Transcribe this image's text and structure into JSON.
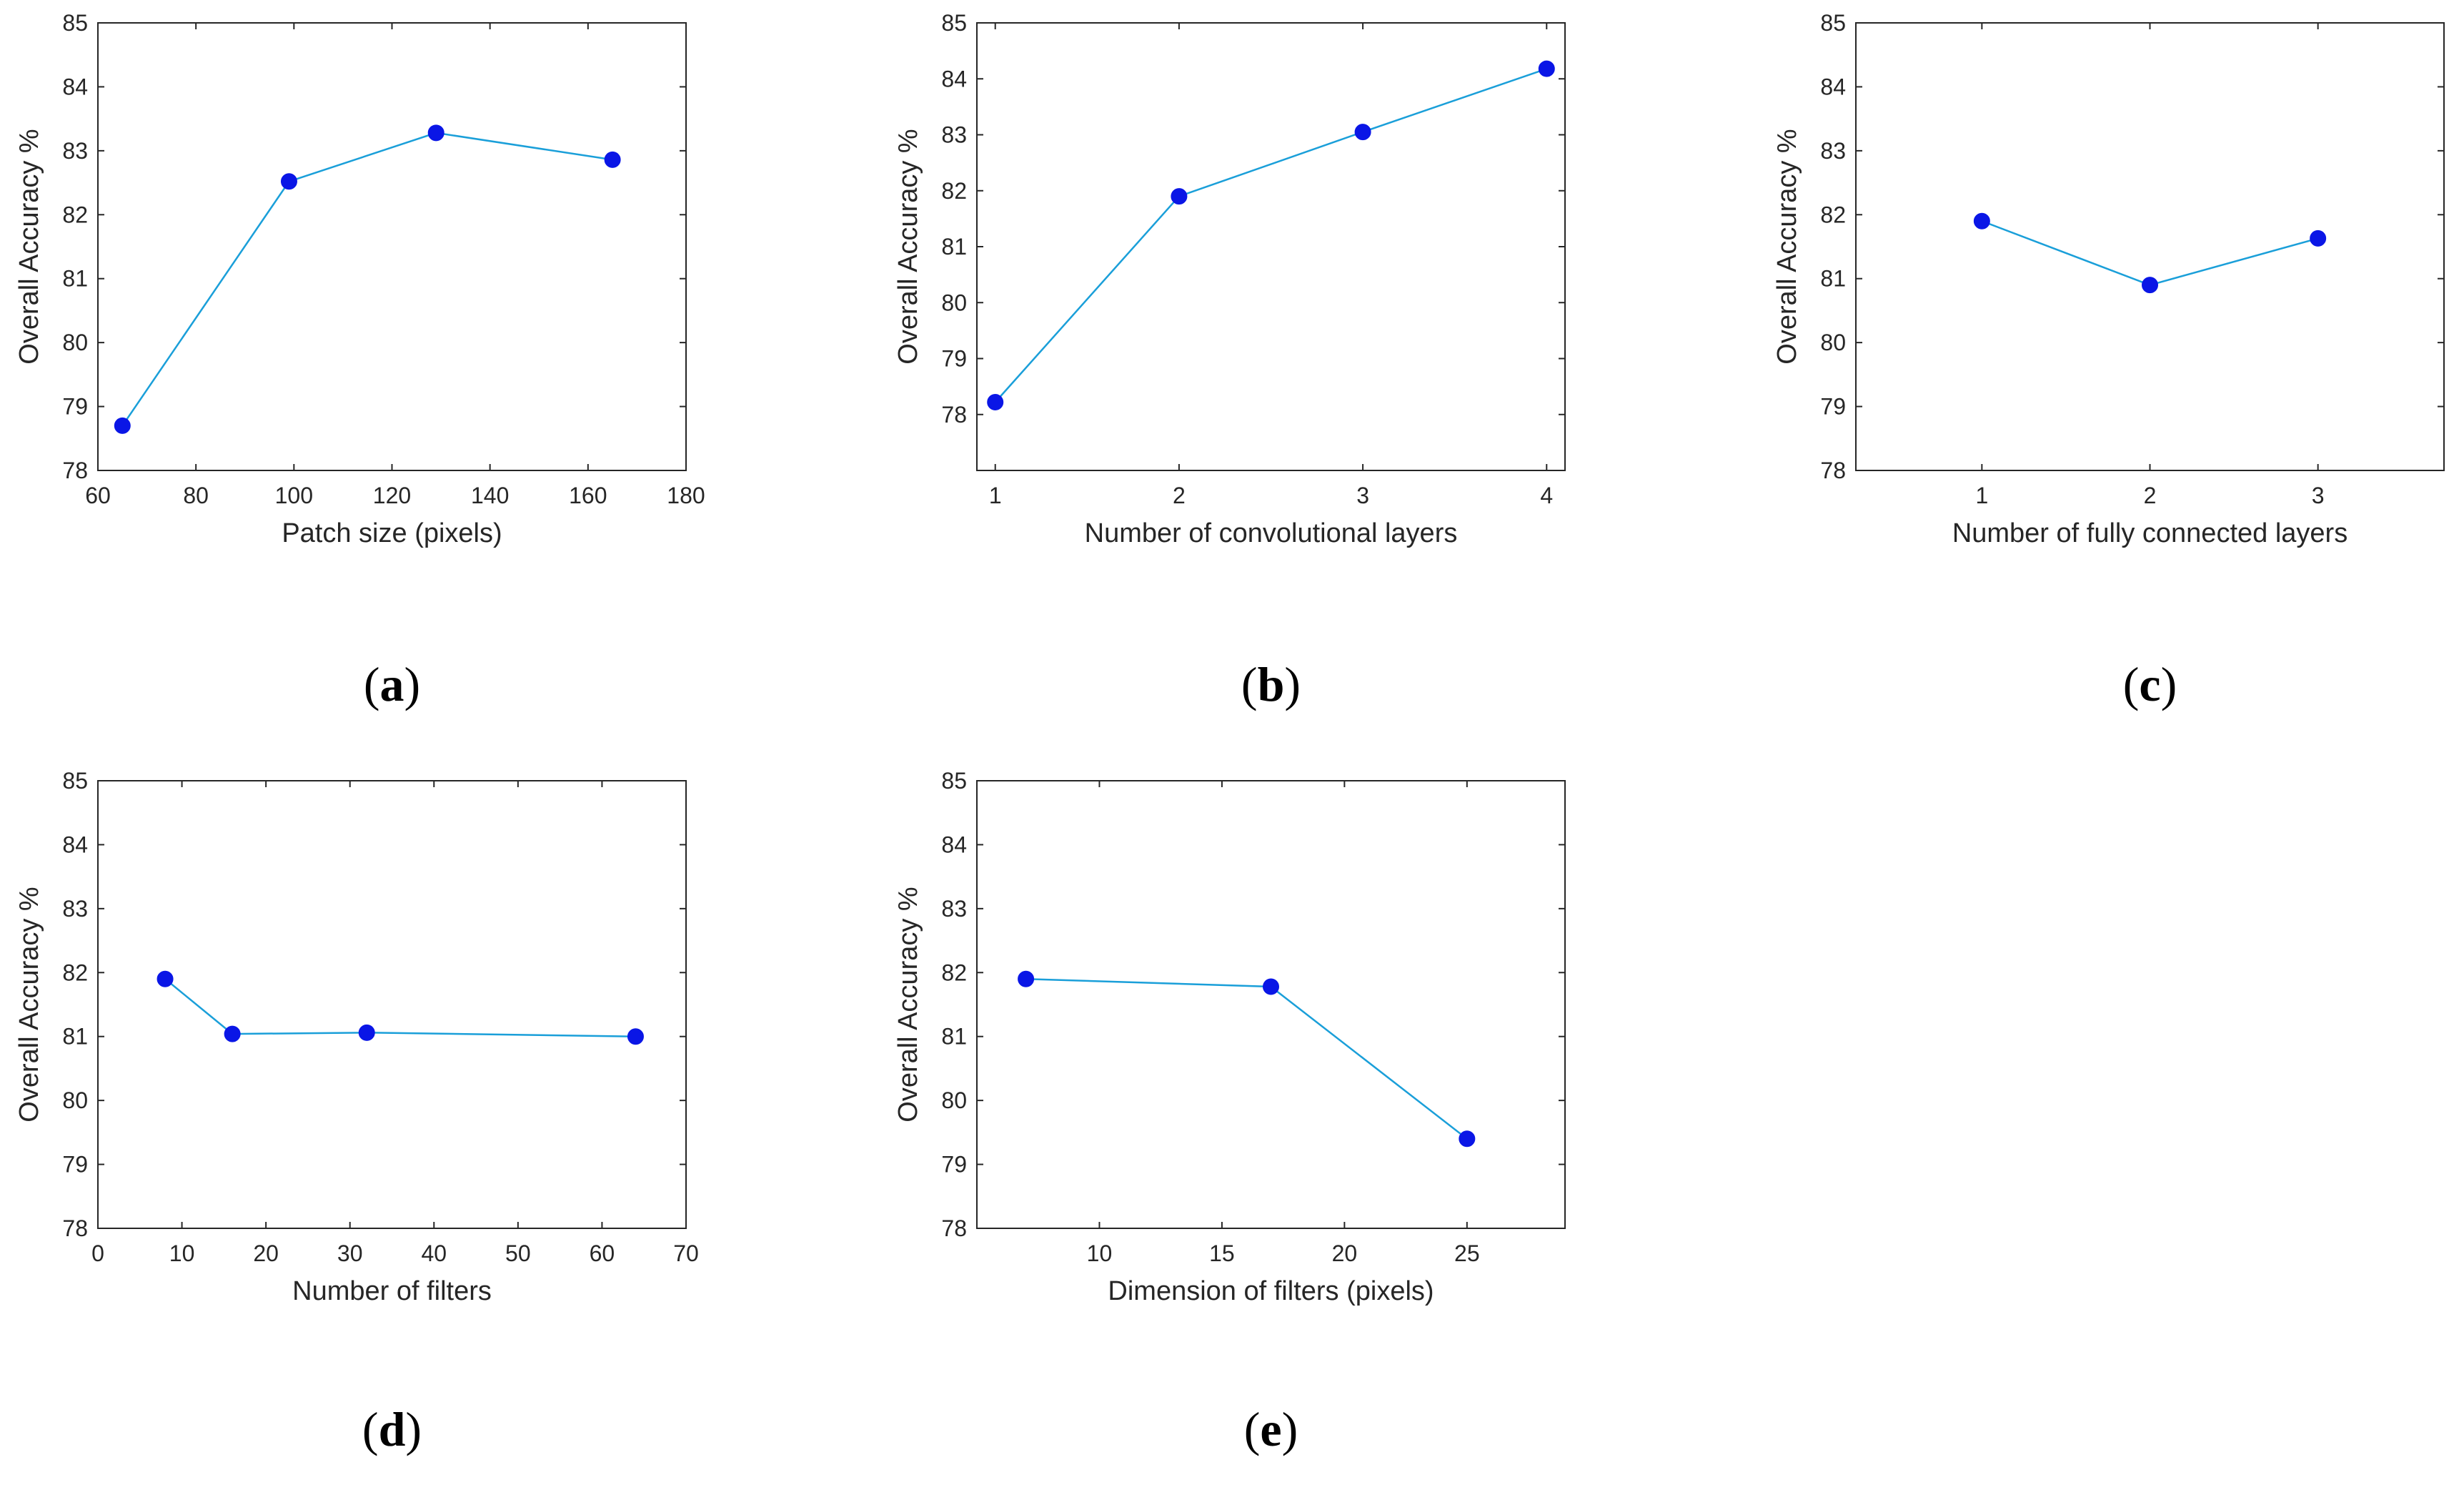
{
  "style": {
    "line_color": "#1a9fd9",
    "marker_color": "#0a16e6",
    "axis_color": "#262626"
  },
  "chart_data": [
    {
      "type": "line",
      "panel": "a",
      "xlabel": "Patch size (pixels)",
      "ylabel": "Overall Accuracy %",
      "xlim": [
        60,
        180
      ],
      "ylim": [
        78,
        85
      ],
      "xticks": [
        60,
        80,
        100,
        120,
        140,
        160,
        180
      ],
      "yticks": [
        78,
        79,
        80,
        81,
        82,
        83,
        84,
        85
      ],
      "x": [
        65,
        99,
        129,
        165
      ],
      "y": [
        78.7,
        82.52,
        83.28,
        82.86
      ]
    },
    {
      "type": "line",
      "panel": "b",
      "xlabel": "Number of convolutional layers",
      "ylabel": "Overall Accuracy %",
      "xlim": [
        0.9,
        4.1
      ],
      "ylim": [
        77,
        85
      ],
      "xticks": [
        1,
        2,
        3,
        4
      ],
      "yticks": [
        78,
        79,
        80,
        81,
        82,
        83,
        84,
        85
      ],
      "x": [
        1,
        2,
        3,
        4
      ],
      "y": [
        78.22,
        81.9,
        83.05,
        84.18
      ]
    },
    {
      "type": "line",
      "panel": "c",
      "xlabel": "Number of fully connected layers",
      "ylabel": "Overall Accuracy %",
      "xlim": [
        0.25,
        3.75
      ],
      "ylim": [
        78,
        85
      ],
      "xticks": [
        1,
        2,
        3
      ],
      "yticks": [
        78,
        79,
        80,
        81,
        82,
        83,
        84,
        85
      ],
      "x": [
        1,
        2,
        3
      ],
      "y": [
        81.9,
        80.9,
        81.63
      ]
    },
    {
      "type": "line",
      "panel": "d",
      "xlabel": "Number of filters",
      "ylabel": "Overall Accuracy %",
      "xlim": [
        0,
        70
      ],
      "ylim": [
        78,
        85
      ],
      "xticks": [
        0,
        10,
        20,
        30,
        40,
        50,
        60,
        70
      ],
      "yticks": [
        78,
        79,
        80,
        81,
        82,
        83,
        84,
        85
      ],
      "x": [
        8,
        16,
        32,
        64
      ],
      "y": [
        81.9,
        81.04,
        81.06,
        81.0
      ]
    },
    {
      "type": "line",
      "panel": "e",
      "xlabel": "Dimension of filters (pixels)",
      "ylabel": "Overall Accuracy %",
      "xlim": [
        5,
        29
      ],
      "ylim": [
        78,
        85
      ],
      "xticks": [
        10,
        15,
        20,
        25
      ],
      "yticks": [
        78,
        79,
        80,
        81,
        82,
        83,
        84,
        85
      ],
      "x": [
        7,
        17,
        25
      ],
      "y": [
        81.9,
        81.78,
        79.4
      ]
    }
  ]
}
